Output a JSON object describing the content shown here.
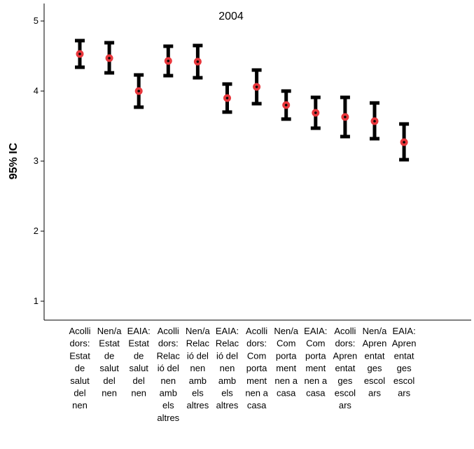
{
  "chart_data": {
    "type": "scatter",
    "title": "2004",
    "xlabel": "",
    "ylabel": "95% IC",
    "ylim": [
      0.75,
      5.2
    ],
    "yticks": [
      1,
      2,
      3,
      4,
      5
    ],
    "grid": false,
    "categories": [
      [
        "Acolli",
        "dors:",
        "Estat",
        "de",
        "salut",
        "del",
        "nen"
      ],
      [
        "Nen/a",
        "Estat",
        "de",
        "salut",
        "del",
        "nen"
      ],
      [
        "EAIA:",
        "Estat",
        "de",
        "salut",
        "del",
        "nen"
      ],
      [
        "Acolli",
        "dors:",
        "Relac",
        "ió del",
        "nen",
        "amb",
        "els",
        "altres"
      ],
      [
        "Nen/a",
        "Relac",
        "ió del",
        "nen",
        "amb",
        "els",
        "altres"
      ],
      [
        "EAIA:",
        "Relac",
        "ió del",
        "nen",
        "amb",
        "els",
        "altres"
      ],
      [
        "Acolli",
        "dors:",
        "Com",
        "porta",
        "ment",
        "nen a",
        "casa"
      ],
      [
        "Nen/a",
        "Com",
        "porta",
        "ment",
        "nen a",
        "casa"
      ],
      [
        "EAIA:",
        "Com",
        "porta",
        "ment",
        "nen a",
        "casa"
      ],
      [
        "Acolli",
        "dors:",
        "Apren",
        "entat",
        "ges",
        "escol",
        "ars"
      ],
      [
        "Nen/a",
        "Apren",
        "entat",
        "ges",
        "escol",
        "ars"
      ],
      [
        "EAIA:",
        "Apren",
        "entat",
        "ges",
        "escol",
        "ars"
      ]
    ],
    "series": [
      {
        "mean": [
          4.53,
          4.47,
          4.0,
          4.43,
          4.42,
          3.9,
          4.06,
          3.8,
          3.69,
          3.63,
          3.57,
          3.27
        ],
        "lower": [
          4.34,
          4.26,
          3.77,
          4.22,
          4.19,
          3.7,
          3.82,
          3.6,
          3.47,
          3.35,
          3.32,
          3.02
        ],
        "upper": [
          4.72,
          4.69,
          4.23,
          4.64,
          4.65,
          4.1,
          4.3,
          4.0,
          3.91,
          3.91,
          3.83,
          3.53
        ]
      }
    ],
    "colors": {
      "errorbar": "#000000",
      "marker": "#e8373c",
      "marker_center": "#000000"
    }
  }
}
